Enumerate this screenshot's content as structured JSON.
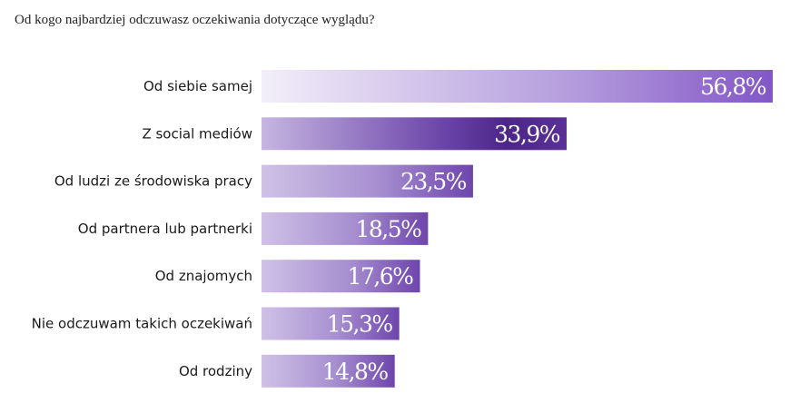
{
  "chart_data": {
    "type": "bar",
    "orientation": "horizontal",
    "title": "Od kogo najbardziej odczuwasz oczekiwania dotyczące wyglądu?",
    "xlabel": "",
    "ylabel": "",
    "categories": [
      "Od siebie samej",
      "Z social mediów",
      "Od ludzi ze środowiska pracy",
      "Od partnera lub partnerki",
      "Od znajomych",
      "Nie odczuwam takich oczekiwań",
      "Od rodziny"
    ],
    "values": [
      56.8,
      33.9,
      23.5,
      18.5,
      17.6,
      15.3,
      14.8
    ],
    "value_labels": [
      "56,8%",
      "33,9%",
      "23,5%",
      "18,5%",
      "17,6%",
      "15,3%",
      "14,8%"
    ],
    "xlim": [
      0,
      56.8
    ],
    "grid": false,
    "legend": "none",
    "colors": {
      "bar_start": "#f2eef9",
      "bar_end_light": "#8257c6",
      "bar_end_dark": "#4d2688",
      "highlight_bar_start": "#c6b5e1",
      "highlight_bar_end": "#4d2688"
    }
  }
}
